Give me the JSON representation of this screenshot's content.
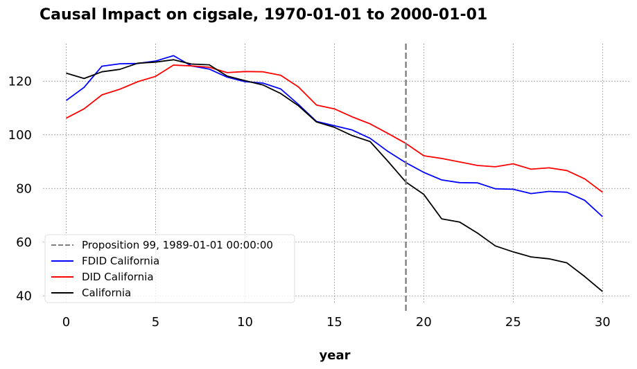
{
  "chart_data": {
    "type": "line",
    "title": "Causal Impact on cigsale, 1970-01-01 to 2000-01-01",
    "xlabel": "year",
    "ylabel": "",
    "xlim": [
      -1.3,
      31.5
    ],
    "ylim": [
      37.5,
      134
    ],
    "xticks": [
      0,
      5,
      10,
      15,
      20,
      25,
      30
    ],
    "yticks": [
      40,
      60,
      80,
      100,
      120
    ],
    "grid": true,
    "legend_position": "lower-left",
    "intervention": {
      "x": 19,
      "label": "Proposition 99, 1989-01-01 00:00:00",
      "color": "#7f7f7f",
      "style": "dashed"
    },
    "x": [
      0,
      1,
      2,
      3,
      4,
      5,
      6,
      7,
      8,
      9,
      10,
      11,
      12,
      13,
      14,
      15,
      16,
      17,
      18,
      19,
      20,
      21,
      22,
      23,
      24,
      25,
      26,
      27,
      28,
      29,
      30
    ],
    "series": [
      {
        "name": "FDID California",
        "color": "#0000ff",
        "values": [
          112.8,
          117.7,
          125.6,
          126.5,
          126.6,
          127.5,
          129.5,
          125.7,
          124.5,
          121.5,
          119.8,
          119.3,
          117.1,
          111.3,
          105.0,
          103.4,
          101.8,
          98.7,
          93.8,
          89.6,
          86.0,
          83.2,
          82.2,
          82.1,
          79.9,
          79.7,
          78.1,
          78.9,
          78.6,
          75.6,
          69.5
        ]
      },
      {
        "name": "DID California",
        "color": "#ff0000",
        "values": [
          106.2,
          109.7,
          114.9,
          117.0,
          119.8,
          121.8,
          126.0,
          125.7,
          125.2,
          123.2,
          123.6,
          123.5,
          122.2,
          117.8,
          111.1,
          109.7,
          106.7,
          104.1,
          100.5,
          96.8,
          92.2,
          91.2,
          89.9,
          88.6,
          88.1,
          89.2,
          87.2,
          87.7,
          86.7,
          83.6,
          78.6
        ]
      },
      {
        "name": "California",
        "color": "#000000",
        "values": [
          123.0,
          121.0,
          123.5,
          124.4,
          126.7,
          127.1,
          128.0,
          126.4,
          126.1,
          121.9,
          120.2,
          118.6,
          115.4,
          110.8,
          104.8,
          102.8,
          99.7,
          97.5,
          90.1,
          82.4,
          77.8,
          68.7,
          67.5,
          63.4,
          58.6,
          56.4,
          54.5,
          53.8,
          52.3,
          47.2,
          41.6
        ]
      }
    ]
  }
}
